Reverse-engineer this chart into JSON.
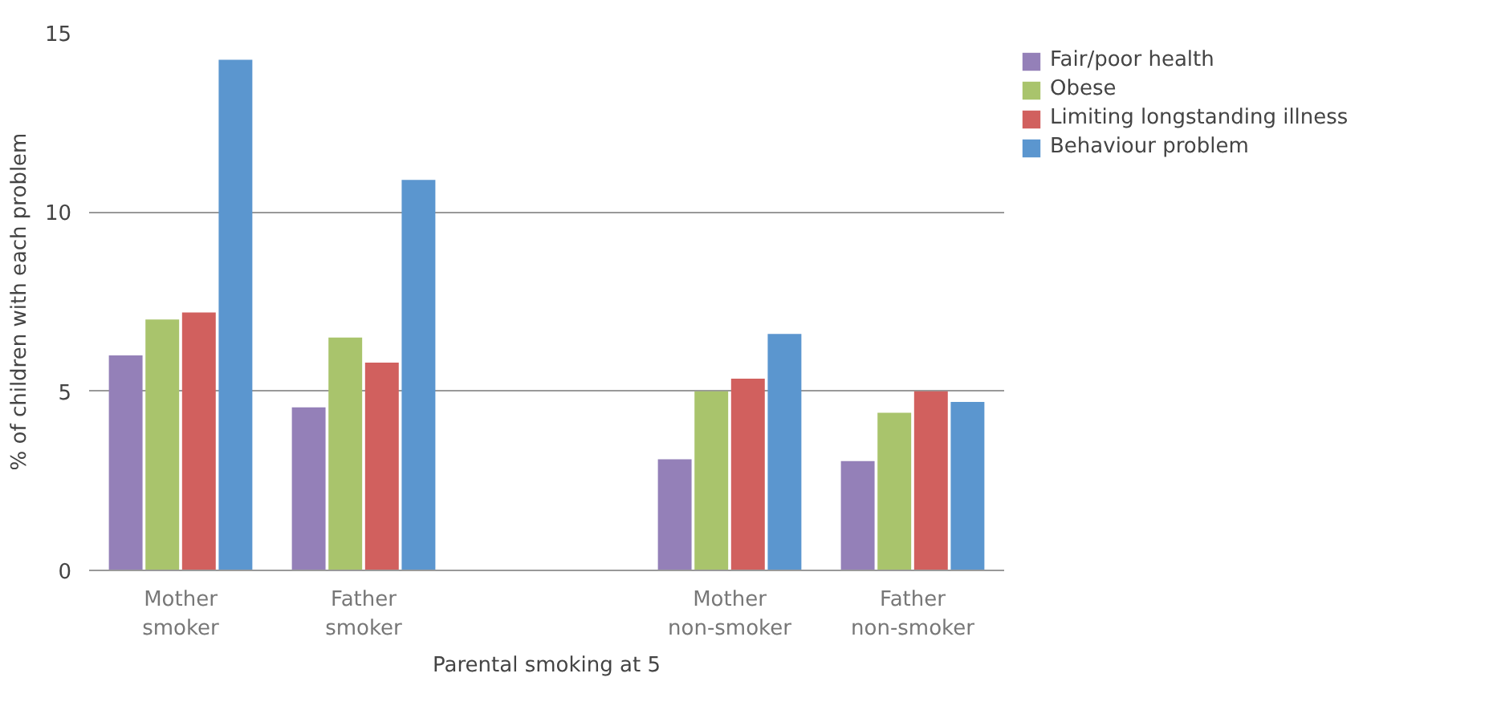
{
  "chart_data": {
    "type": "bar",
    "xlabel": "Parental smoking at 5",
    "ylabel": "% of children with each problem",
    "categories": [
      "Mother\nsmoker",
      "Father\nsmoker",
      null,
      "Mother\nnon-smoker",
      "Father\nnon-smoker"
    ],
    "series": [
      {
        "name": "Fair/poor health",
        "color": "#9480b8",
        "values": [
          6.0,
          4.55,
          null,
          3.1,
          3.05
        ]
      },
      {
        "name": "Obese",
        "color": "#a9c46c",
        "values": [
          7.0,
          6.5,
          null,
          5.0,
          4.4
        ]
      },
      {
        "name": "Limiting longstanding illness",
        "color": "#d1605e",
        "values": [
          7.2,
          5.8,
          null,
          5.35,
          5.0
        ]
      },
      {
        "name": "Behaviour problem",
        "color": "#5b96cf",
        "values": [
          14.25,
          10.9,
          null,
          6.6,
          4.7
        ]
      }
    ],
    "ylim": [
      0,
      15
    ],
    "yticks": [
      0,
      5,
      10,
      15
    ],
    "grid": "y",
    "legend": "top right"
  }
}
